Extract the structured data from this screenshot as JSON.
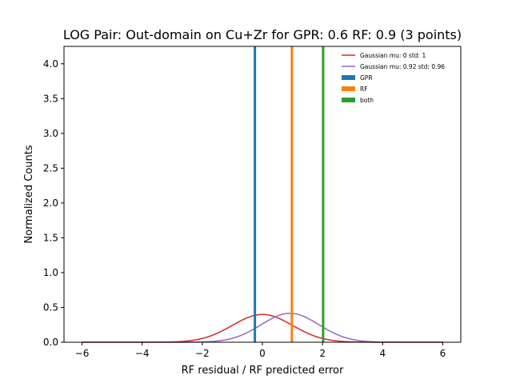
{
  "chart_data": {
    "type": "line",
    "title": "LOG Pair: Out-domain on Cu+Zr for GPR: 0.6 RF: 0.9 (3 points)",
    "xlabel": "RF residual / RF predicted error",
    "ylabel": "Normalized Counts",
    "xlim": [
      -6.6,
      6.6
    ],
    "ylim": [
      0,
      4.25
    ],
    "xticks": [
      -6,
      -4,
      -2,
      0,
      2,
      4,
      6
    ],
    "xtick_labels": [
      "−6",
      "−4",
      "−2",
      "0",
      "2",
      "4",
      "6"
    ],
    "yticks": [
      0.0,
      0.5,
      1.0,
      1.5,
      2.0,
      2.5,
      3.0,
      3.5,
      4.0
    ],
    "ytick_labels": [
      "0.0",
      "0.5",
      "1.0",
      "1.5",
      "2.0",
      "2.5",
      "3.0",
      "3.5",
      "4.0"
    ],
    "grid": false,
    "legend_position": "top-right",
    "curves": [
      {
        "name": "Gaussian mu: 0 std: 1",
        "mu": 0,
        "std": 1,
        "x_range": [
          -6,
          6
        ],
        "color": "#d62728"
      },
      {
        "name": "Gaussian mu: 0.92 std: 0.96",
        "mu": 0.92,
        "std": 0.96,
        "x_range": [
          -6,
          6
        ],
        "color": "#9467bd"
      }
    ],
    "vertical_lines": [
      {
        "name": "GPR",
        "x": -0.25,
        "color": "#1f77b4"
      },
      {
        "name": "RF",
        "x": 0.98,
        "color": "#ff7f0e"
      },
      {
        "name": "both",
        "x": 2.02,
        "color": "#2ca02c"
      }
    ]
  }
}
